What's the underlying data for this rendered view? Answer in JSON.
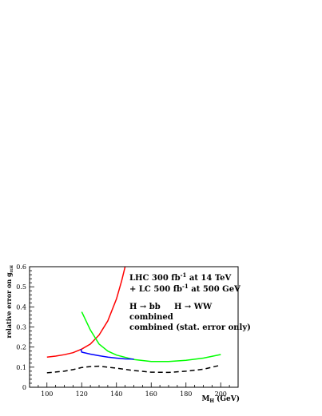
{
  "chart_data": {
    "type": "line",
    "xlabel": "M",
    "xlabel_sub": "H",
    "xlabel_unit": "(GeV)",
    "ylabel": "relative error on g",
    "ylabel_sub": "ttH",
    "xlim": [
      90,
      210
    ],
    "ylim": [
      0,
      0.6
    ],
    "x_ticks": [
      100,
      120,
      140,
      160,
      180,
      200
    ],
    "y_ticks": [
      0,
      0.1,
      0.2,
      0.3,
      0.4,
      0.5,
      0.6
    ],
    "x_tick_labels": [
      "100",
      "120",
      "140",
      "160",
      "180",
      "200"
    ],
    "y_tick_labels": [
      "0",
      "0.1",
      "0.2",
      "0.3",
      "0.4",
      "0.5",
      "0.6"
    ],
    "annotation_lines": [
      {
        "before": "LHC 300 fb",
        "sup": "-1",
        "after": " at 14 TeV"
      },
      {
        "before": "+ LC 500 fb",
        "sup": "-1",
        "after": " at 500 GeV"
      }
    ],
    "legend": [
      {
        "left": "H → bb",
        "left_color": "#ff0000",
        "right": "H → WW",
        "right_color": "#00ff00"
      },
      {
        "left": "combined",
        "left_color": "#0000ff"
      },
      {
        "left": "combined (stat. error only)",
        "left_color": "#000000"
      }
    ],
    "series": [
      {
        "color": "#ff0000",
        "style": "solid",
        "x": [
          100,
          105,
          110,
          115,
          120,
          125,
          130,
          135,
          140,
          143,
          145
        ],
        "y": [
          0.15,
          0.155,
          0.162,
          0.172,
          0.19,
          0.215,
          0.26,
          0.33,
          0.44,
          0.53,
          0.6
        ]
      },
      {
        "color": "#00ff00",
        "style": "solid",
        "x": [
          120,
          125,
          130,
          135,
          140,
          150,
          160,
          170,
          180,
          190,
          200
        ],
        "y": [
          0.375,
          0.285,
          0.215,
          0.18,
          0.16,
          0.138,
          0.128,
          0.128,
          0.134,
          0.145,
          0.163
        ]
      },
      {
        "color": "#0000ff",
        "style": "solid",
        "x": [
          119.5,
          120,
          125,
          130,
          135,
          140,
          145,
          150
        ],
        "y": [
          0.19,
          0.175,
          0.165,
          0.157,
          0.15,
          0.145,
          0.141,
          0.14
        ]
      },
      {
        "color": "#000000",
        "style": "dashed",
        "x": [
          100,
          105,
          110,
          115,
          120,
          125,
          130,
          140,
          150,
          160,
          170,
          180,
          190,
          200
        ],
        "y": [
          0.072,
          0.076,
          0.08,
          0.088,
          0.098,
          0.103,
          0.105,
          0.095,
          0.083,
          0.075,
          0.074,
          0.08,
          0.09,
          0.11
        ]
      }
    ]
  }
}
